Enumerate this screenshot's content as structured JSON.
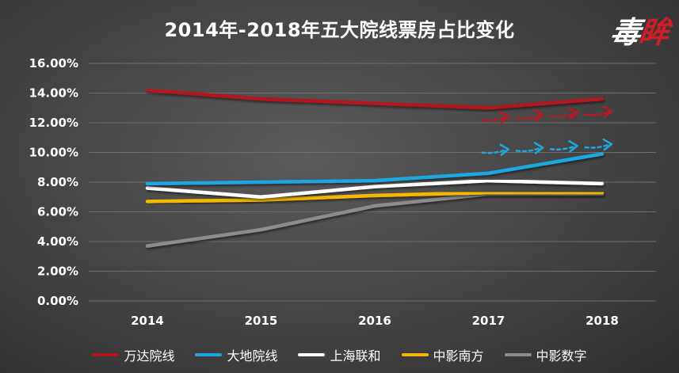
{
  "logo": {
    "text_main": "毒",
    "text_accent": "眸"
  },
  "chart_data": {
    "type": "line",
    "title": "2014年-2018年五大院线票房占比变化",
    "xlabel": "",
    "ylabel": "",
    "categories": [
      "2014",
      "2015",
      "2016",
      "2017",
      "2018"
    ],
    "ylim": [
      0,
      16
    ],
    "y_ticks": [
      0,
      2,
      4,
      6,
      8,
      10,
      12,
      14,
      16
    ],
    "y_tick_labels": [
      "0.00%",
      "2.00%",
      "4.00%",
      "6.00%",
      "8.00%",
      "10.00%",
      "12.00%",
      "14.00%",
      "16.00%"
    ],
    "grid": true,
    "legend_position": "bottom",
    "series": [
      {
        "name": "万达院线",
        "color": "#b3141c",
        "values": [
          14.2,
          13.6,
          13.3,
          13.0,
          13.6
        ]
      },
      {
        "name": "大地院线",
        "color": "#1ea7e1",
        "values": [
          7.9,
          8.0,
          8.1,
          8.6,
          9.9
        ]
      },
      {
        "name": "上海联和",
        "color": "#ffffff",
        "values": [
          7.6,
          7.0,
          7.7,
          8.1,
          7.9
        ]
      },
      {
        "name": "中影南方",
        "color": "#f5b800",
        "values": [
          6.7,
          6.8,
          7.1,
          7.3,
          7.3
        ]
      },
      {
        "name": "中影数字",
        "color": "#8c8c8c",
        "values": [
          3.7,
          4.8,
          6.4,
          7.2,
          7.2
        ]
      }
    ],
    "annotations": [
      {
        "type": "arrows",
        "series": "万达院线",
        "color": "#c8141e",
        "count": 4,
        "x_from": "2017",
        "x_to": "2018",
        "y": 12.3
      },
      {
        "type": "arrows",
        "series": "大地院线",
        "color": "#1ea7e1",
        "count": 4,
        "x_from": "2017",
        "x_to": "2018",
        "y": 10.1
      }
    ]
  }
}
